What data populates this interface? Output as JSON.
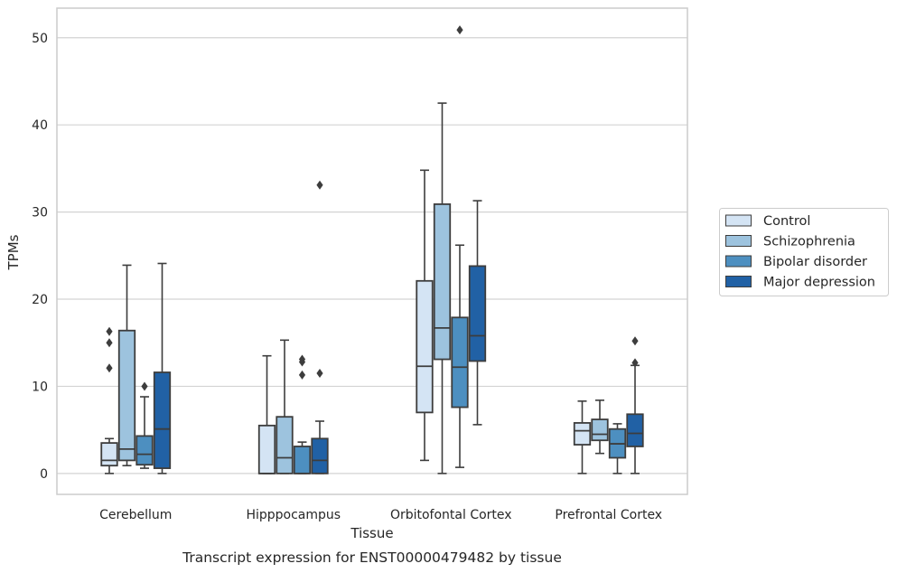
{
  "chart_data": {
    "type": "box",
    "caption": "Transcript expression for ENST00000479482 by tissue",
    "xlabel": "Tissue",
    "ylabel": "TPMs",
    "ylim": [
      -2.4,
      53.4
    ],
    "yticks": [
      0,
      10,
      20,
      30,
      40,
      50
    ],
    "grid": "y",
    "legend_position": "right",
    "categories": [
      "Cerebellum",
      "Hipppocampus",
      "Orbitofontal Cortex",
      "Prefrontal Cortex"
    ],
    "series": [
      {
        "name": "Control",
        "color": "#d4e4f4",
        "boxes": [
          {
            "whislo": 0.0,
            "q1": 0.9,
            "med": 1.5,
            "q3": 3.5,
            "whishi": 4.0,
            "fliers": [
              12.1,
              15.0,
              16.3
            ]
          },
          {
            "whislo": 0.0,
            "q1": 0.0,
            "med": 0.0,
            "q3": 5.5,
            "whishi": 13.5,
            "fliers": []
          },
          {
            "whislo": 1.5,
            "q1": 7.0,
            "med": 12.3,
            "q3": 22.1,
            "whishi": 34.8,
            "fliers": []
          },
          {
            "whislo": 0.0,
            "q1": 3.3,
            "med": 4.9,
            "q3": 5.8,
            "whishi": 8.3,
            "fliers": []
          }
        ]
      },
      {
        "name": "Schizophrenia",
        "color": "#9dc3de",
        "boxes": [
          {
            "whislo": 0.9,
            "q1": 1.5,
            "med": 2.8,
            "q3": 16.4,
            "whishi": 23.9,
            "fliers": []
          },
          {
            "whislo": 0.0,
            "q1": 0.0,
            "med": 1.8,
            "q3": 6.5,
            "whishi": 15.3,
            "fliers": []
          },
          {
            "whislo": 0.0,
            "q1": 13.1,
            "med": 16.7,
            "q3": 30.9,
            "whishi": 42.5,
            "fliers": []
          },
          {
            "whislo": 2.3,
            "q1": 3.8,
            "med": 4.5,
            "q3": 6.2,
            "whishi": 8.4,
            "fliers": []
          }
        ]
      },
      {
        "name": "Bipolar disorder",
        "color": "#4d8fc0",
        "boxes": [
          {
            "whislo": 0.6,
            "q1": 1.0,
            "med": 2.2,
            "q3": 4.3,
            "whishi": 8.8,
            "fliers": [
              10.0
            ]
          },
          {
            "whislo": 0.0,
            "q1": 0.0,
            "med": 0.0,
            "q3": 3.1,
            "whishi": 3.6,
            "fliers": [
              11.3,
              12.8,
              13.1
            ]
          },
          {
            "whislo": 0.7,
            "q1": 7.6,
            "med": 12.2,
            "q3": 17.9,
            "whishi": 26.2,
            "fliers": [
              50.9
            ]
          },
          {
            "whislo": 0.0,
            "q1": 1.8,
            "med": 3.4,
            "q3": 5.1,
            "whishi": 5.7,
            "fliers": []
          }
        ]
      },
      {
        "name": "Major depression",
        "color": "#2161a5",
        "boxes": [
          {
            "whislo": 0.0,
            "q1": 0.6,
            "med": 5.1,
            "q3": 11.6,
            "whishi": 24.1,
            "fliers": []
          },
          {
            "whislo": 0.0,
            "q1": 0.0,
            "med": 1.5,
            "q3": 4.0,
            "whishi": 6.0,
            "fliers": [
              11.5,
              33.1
            ]
          },
          {
            "whislo": 5.6,
            "q1": 12.9,
            "med": 15.8,
            "q3": 23.8,
            "whishi": 31.3,
            "fliers": []
          },
          {
            "whislo": 0.0,
            "q1": 3.1,
            "med": 4.6,
            "q3": 6.8,
            "whishi": 12.4,
            "fliers": [
              12.7,
              15.2
            ]
          }
        ]
      }
    ]
  }
}
